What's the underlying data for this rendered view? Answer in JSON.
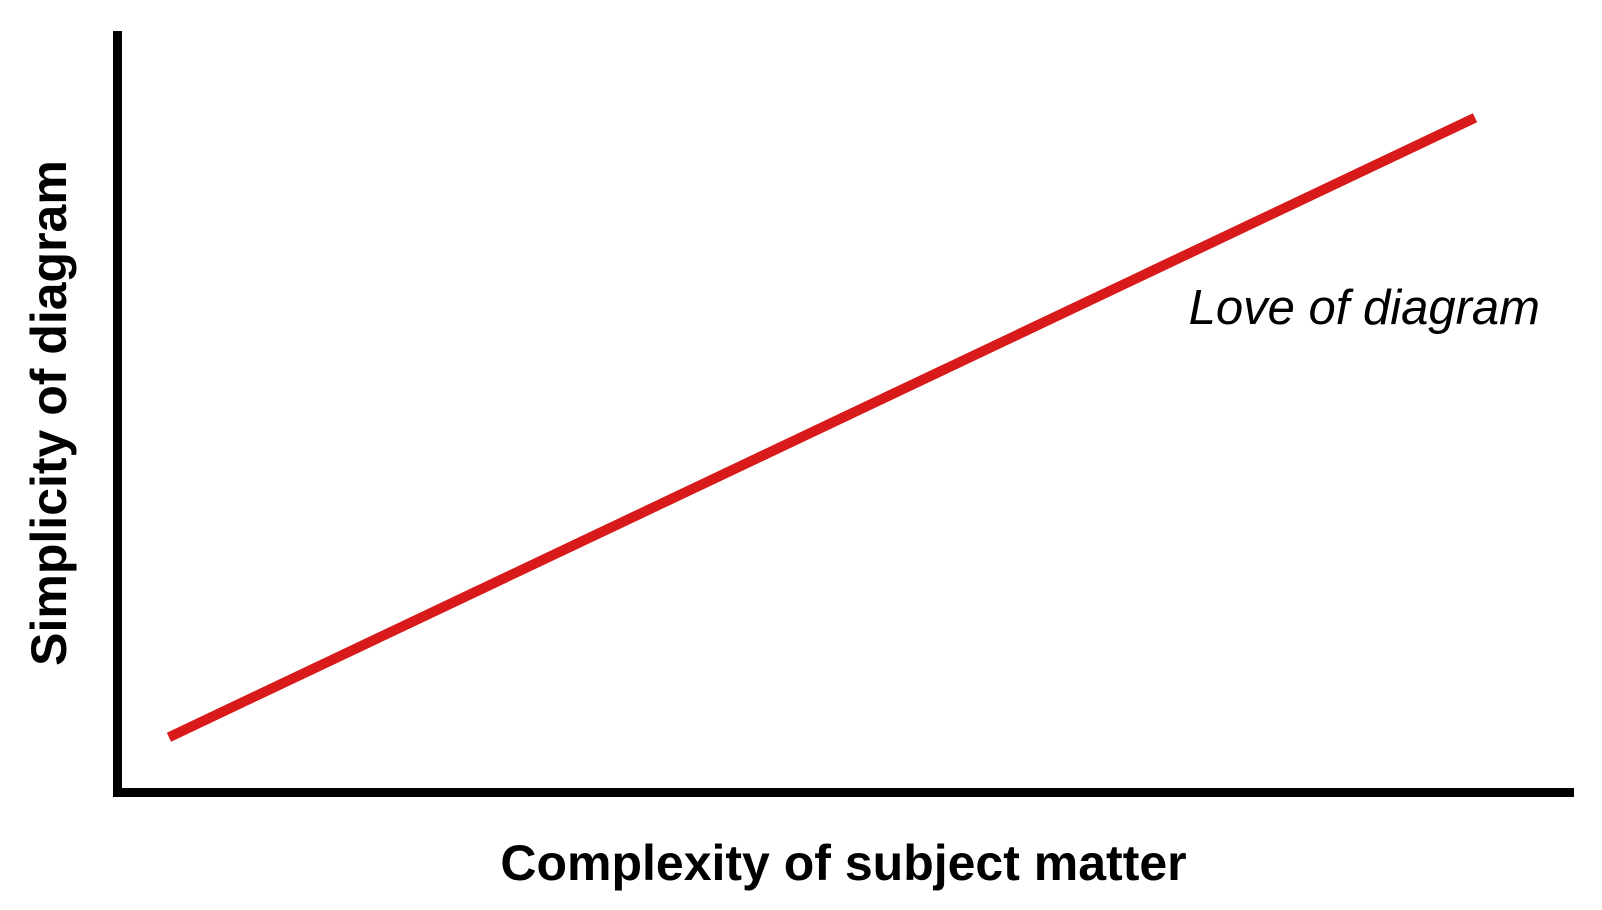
{
  "chart_data": {
    "type": "line",
    "title": "",
    "xlabel": "Complexity of subject matter",
    "ylabel": "Simplicity of diagram",
    "xlim": [
      0,
      1
    ],
    "ylim": [
      0,
      1
    ],
    "grid": false,
    "ticks": "none",
    "axis_color": "#000000",
    "background_color": "#ffffff",
    "series": [
      {
        "name": "Love of diagram",
        "color": "#D91A1A",
        "stroke_width": 10,
        "x": [
          0.035,
          0.932
        ],
        "y": [
          0.072,
          0.886
        ]
      }
    ],
    "annotation": {
      "text": "Love of diagram",
      "style": "italic",
      "color": "#000000",
      "position": "upper-right, above the line"
    }
  }
}
